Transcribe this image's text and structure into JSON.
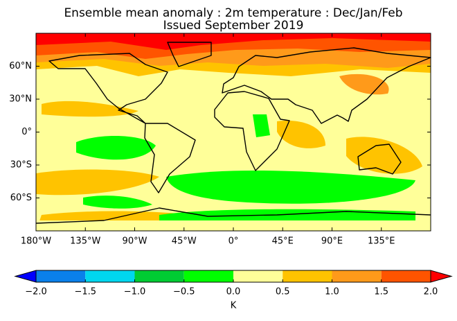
{
  "title": "Ensemble mean anomaly : 2m temperature : Dec/Jan/Feb",
  "subtitle": "Issued September 2019",
  "map": {
    "lon_range": [
      -180,
      180
    ],
    "lat_range": [
      -90,
      90
    ],
    "xticks": [
      {
        "value": -180,
        "label": "180°W"
      },
      {
        "value": -135,
        "label": "135°W"
      },
      {
        "value": -90,
        "label": "90°W"
      },
      {
        "value": -45,
        "label": "45°W"
      },
      {
        "value": 0,
        "label": "0°"
      },
      {
        "value": 45,
        "label": "45°E"
      },
      {
        "value": 90,
        "label": "90°E"
      },
      {
        "value": 135,
        "label": "135°E"
      }
    ],
    "yticks": [
      {
        "value": 60,
        "label": "60°N"
      },
      {
        "value": 30,
        "label": "30°N"
      },
      {
        "value": 0,
        "label": "0°"
      },
      {
        "value": -30,
        "label": "30°S"
      },
      {
        "value": -60,
        "label": "60°S"
      }
    ]
  },
  "colorbar": {
    "label": "K",
    "levels": [
      {
        "value": -2,
        "label": "−2.0"
      },
      {
        "value": -1.5,
        "label": "−1.5"
      },
      {
        "value": -1,
        "label": "−1.0"
      },
      {
        "value": -0.5,
        "label": "−0.5"
      },
      {
        "value": 0,
        "label": "0.0"
      },
      {
        "value": 0.5,
        "label": "0.5"
      },
      {
        "value": 1,
        "label": "1.0"
      },
      {
        "value": 1.5,
        "label": "1.5"
      },
      {
        "value": 2,
        "label": "2.0"
      }
    ],
    "colors": [
      "#0a80ea",
      "#00d7ef",
      "#00cc33",
      "#00ff00",
      "#ffff99",
      "#ffc300",
      "#ff9a1a",
      "#ff5400"
    ],
    "extend_colors": [
      "#0000ff",
      "#ff0000"
    ]
  }
}
